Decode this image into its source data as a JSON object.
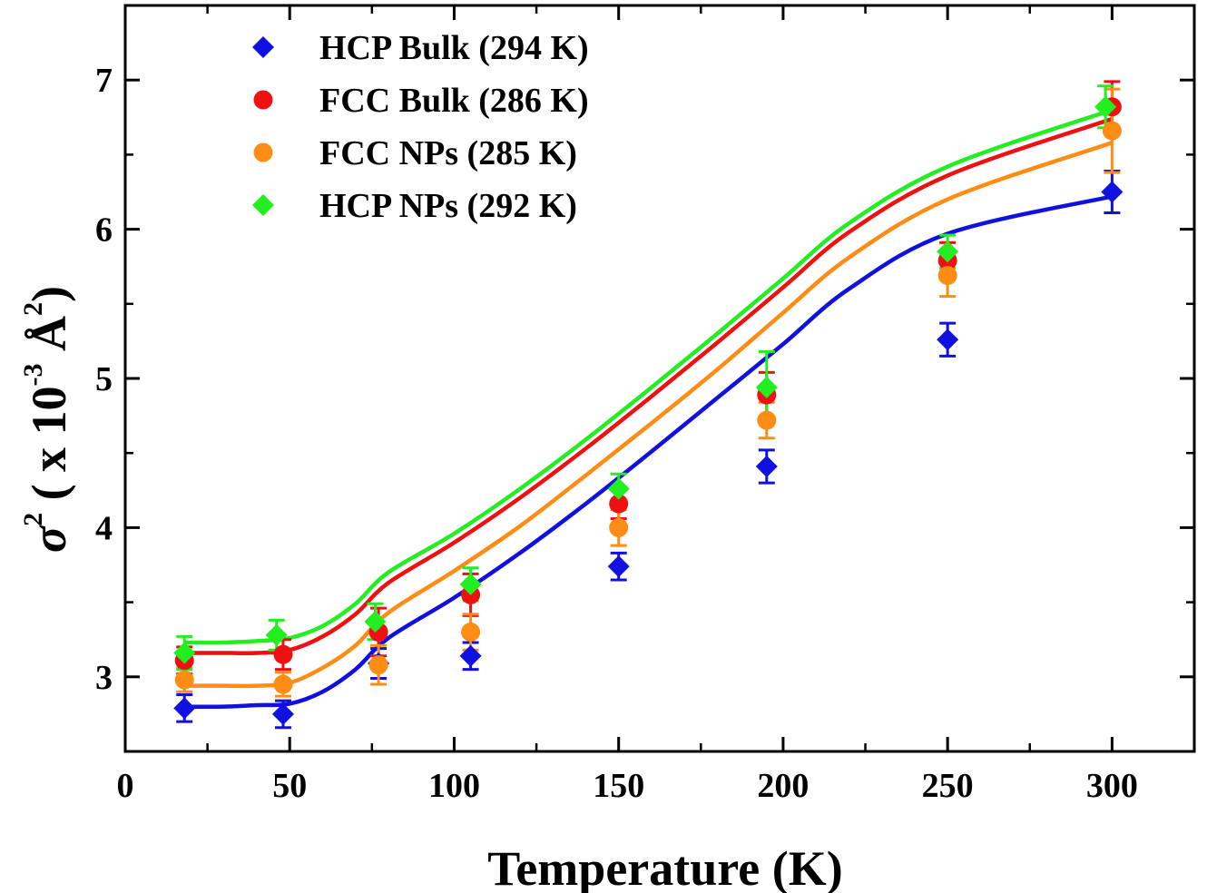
{
  "chart_data": {
    "type": "scatter",
    "title": "",
    "xlabel": "Temperature (K)",
    "ylabel": {
      "prefix": "σ",
      "sup1": "2",
      "mid": " ( x 10",
      "sup2": "-3",
      "unit": " Å",
      "sup3": "2",
      "suffix": ")"
    },
    "xlim": [
      0,
      325
    ],
    "ylim": [
      2.5,
      7.5
    ],
    "xticks": [
      0,
      50,
      100,
      150,
      200,
      250,
      300
    ],
    "yticks": [
      3,
      4,
      5,
      6,
      7
    ],
    "legend_position": "top-left",
    "series": [
      {
        "name": "HCP Bulk (294 K)",
        "marker": "diamond",
        "color": "#1010e0",
        "x": [
          18,
          48,
          77,
          105,
          150,
          195,
          250,
          300
        ],
        "y": [
          2.79,
          2.75,
          3.09,
          3.14,
          3.74,
          4.41,
          5.26,
          6.25
        ],
        "err": [
          0.09,
          0.09,
          0.1,
          0.09,
          0.09,
          0.11,
          0.11,
          0.14
        ],
        "fit": [
          2.8,
          2.8,
          2.81,
          2.82,
          2.9,
          3.05,
          3.26,
          3.53,
          3.83,
          4.16,
          4.51,
          4.87,
          5.23,
          5.6,
          5.97,
          6.22
        ]
      },
      {
        "name": "FCC Bulk (286 K)",
        "marker": "circle",
        "color": "#ee1111",
        "x": [
          18,
          48,
          77,
          105,
          150,
          195,
          250,
          300
        ],
        "y": [
          3.11,
          3.15,
          3.3,
          3.55,
          4.16,
          4.89,
          5.79,
          6.82
        ],
        "err": [
          0.09,
          0.1,
          0.16,
          0.14,
          0.1,
          0.15,
          0.12,
          0.17
        ],
        "fit": [
          3.16,
          3.16,
          3.16,
          3.18,
          3.27,
          3.42,
          3.63,
          3.9,
          4.2,
          4.53,
          4.88,
          5.24,
          5.61,
          5.98,
          6.36,
          6.74
        ]
      },
      {
        "name": "FCC NPs (285 K)",
        "marker": "circle",
        "color": "#ff8c14",
        "x": [
          18,
          48,
          77,
          105,
          150,
          195,
          250,
          300
        ],
        "y": [
          2.98,
          2.95,
          3.08,
          3.3,
          4.0,
          4.72,
          5.69,
          6.66
        ],
        "err": [
          0.08,
          0.08,
          0.13,
          0.12,
          0.12,
          0.12,
          0.14,
          0.28
        ],
        "fit": [
          2.94,
          2.94,
          2.94,
          2.96,
          3.06,
          3.21,
          3.43,
          3.71,
          4.01,
          4.35,
          4.7,
          5.06,
          5.44,
          5.81,
          6.2,
          6.58
        ]
      },
      {
        "name": "HCP NPs (292 K)",
        "marker": "diamond",
        "color": "#22ee22",
        "x": [
          18,
          46,
          76,
          105,
          150,
          195,
          250,
          298
        ],
        "y": [
          3.16,
          3.28,
          3.37,
          3.62,
          4.26,
          4.94,
          5.85,
          6.82
        ],
        "err": [
          0.11,
          0.1,
          0.12,
          0.11,
          0.1,
          0.24,
          0.11,
          0.14
        ],
        "fit": [
          3.23,
          3.23,
          3.24,
          3.26,
          3.34,
          3.49,
          3.7,
          3.96,
          4.26,
          4.59,
          4.94,
          5.3,
          5.67,
          6.04,
          6.42,
          6.8
        ]
      }
    ],
    "fit_x": [
      18,
      30,
      40,
      50,
      60,
      70,
      80,
      100,
      120,
      140,
      160,
      180,
      200,
      220,
      250,
      300
    ]
  }
}
